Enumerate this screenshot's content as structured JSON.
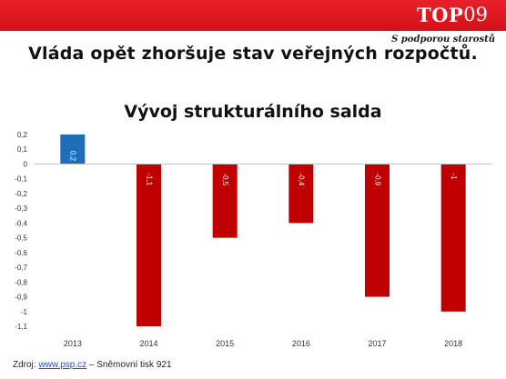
{
  "header": {
    "logo_top": "TOP",
    "logo_num": "09",
    "tagline": "S podporou starostů"
  },
  "headline": "Vláda opět zhoršuje stav veřejných rozpočtů.",
  "source": {
    "prefix": "Zdroj: ",
    "link": "www.psp.cz",
    "suffix": " – Sněmovní tisk 921"
  },
  "chart_data": {
    "type": "bar",
    "title": "Vývoj strukturálního salda",
    "xlabel": "",
    "ylabel": "",
    "categories": [
      "2013",
      "2014",
      "2015",
      "2016",
      "2017",
      "2018"
    ],
    "values": [
      0.2,
      -1.1,
      -0.5,
      -0.4,
      -0.9,
      -1
    ],
    "data_labels": [
      "0,2",
      "-1,1",
      "-0,5",
      "-0,4",
      "-0,9",
      "-1"
    ],
    "ylim": [
      -1.1,
      0.2
    ],
    "yticks": [
      0.2,
      0.1,
      0,
      -0.1,
      -0.2,
      -0.3,
      -0.4,
      -0.5,
      -0.6,
      -0.7,
      -0.8,
      -0.9,
      -1,
      -1.1
    ],
    "ytick_labels": [
      "0,2",
      "0,1",
      "0",
      "-0,1",
      "-0,2",
      "-0,3",
      "-0,4",
      "-0,5",
      "-0,6",
      "-0,7",
      "-0,8",
      "-0,9",
      "-1",
      "-1,1"
    ],
    "grid": false,
    "colors": {
      "positive": "#1e6fb8",
      "negative": "#c00000"
    }
  }
}
